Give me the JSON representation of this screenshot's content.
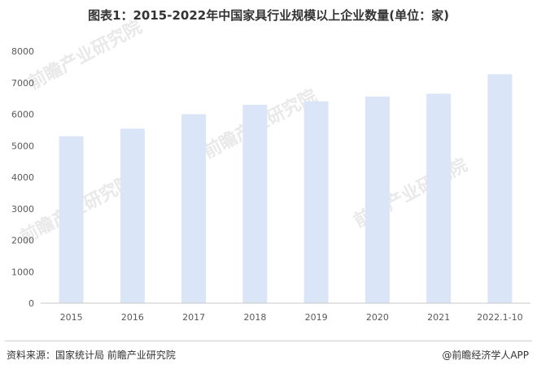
{
  "title": "图表1：2015-2022年中国家具行业规模以上企业数量(单位：家)",
  "footer": {
    "source": "资料来源：国家统计局 前瞻产业研究院",
    "brand": "@前瞻经济学人APP"
  },
  "watermark": {
    "text": "前瞻产业研究院"
  },
  "colors": {
    "bar": "#dae6f7",
    "axis": "#c8c8c8",
    "tick_text": "#595959",
    "title": "#333333"
  },
  "chart_data": {
    "type": "bar",
    "title": "图表1：2015-2022年中国家具行业规模以上企业数量(单位：家)",
    "categories": [
      "2015",
      "2016",
      "2017",
      "2018",
      "2019",
      "2020",
      "2021",
      "2022.1-10"
    ],
    "values": [
      5300,
      5540,
      6000,
      6300,
      6410,
      6560,
      6650,
      7270
    ],
    "xlabel": "",
    "ylabel": "",
    "ylim": [
      0,
      8000
    ],
    "yticks": [
      "0",
      "1000",
      "2000",
      "3000",
      "4000",
      "5000",
      "6000",
      "7000",
      "8000"
    ],
    "grid": false,
    "legend": "none"
  }
}
